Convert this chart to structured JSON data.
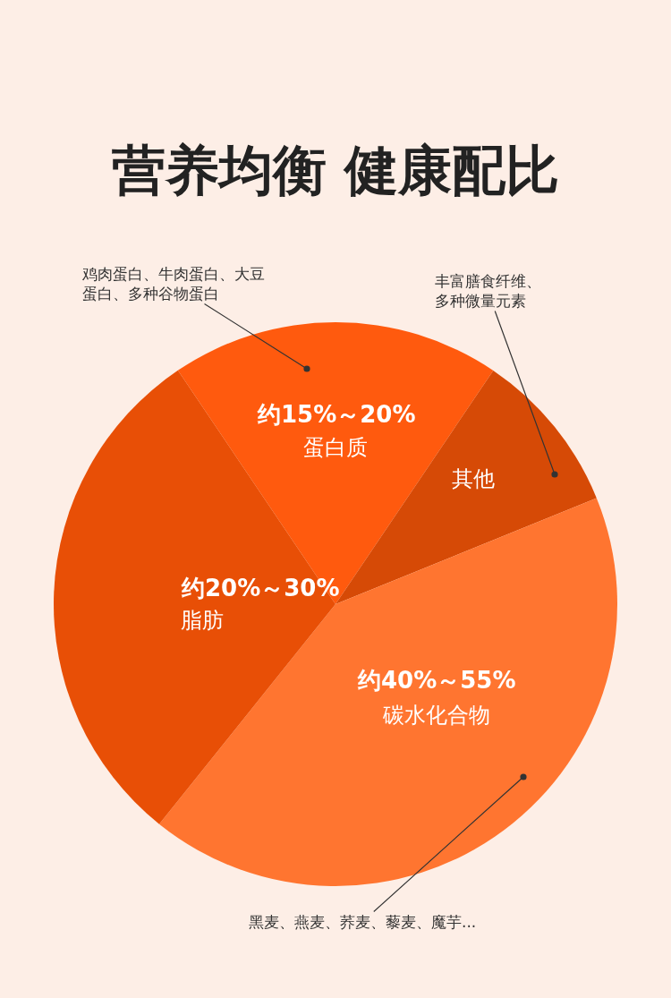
{
  "chart_data": {
    "type": "pie",
    "title": "营养均衡 健康配比",
    "categories": [
      "蛋白质",
      "其他",
      "碳水化合物",
      "脂肪"
    ],
    "values": [
      18.9,
      9.4,
      41.9,
      29.8
    ],
    "colors": [
      "#ff5a0e",
      "#d64a06",
      "#ff7530",
      "#e84f06"
    ],
    "annotations": [
      "鸡肉蛋白、牛肉蛋白、大豆蛋白、多种谷物蛋白",
      "丰富膳食纤维、多种微量元素",
      "黑麦、燕麦、荞麦、藜麦、魔芋...",
      "约15%～20%",
      "约40%～55%",
      "约20%～30%"
    ],
    "legend": false
  }
}
